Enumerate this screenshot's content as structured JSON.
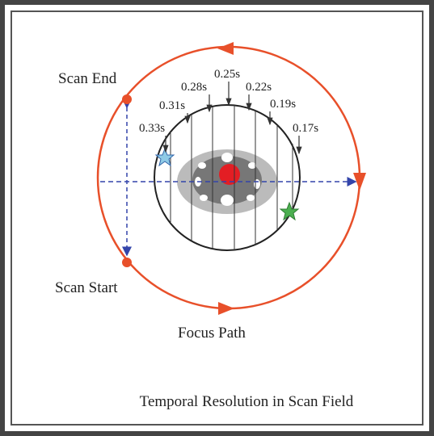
{
  "labels": {
    "scan_end": "Scan End",
    "scan_start": "Scan Start",
    "focus_path": "Focus Path"
  },
  "time_labels": [
    "0.33s",
    "0.31s",
    "0.28s",
    "0.25s",
    "0.22s",
    "0.19s",
    "0.17s"
  ],
  "caption": "Temporal Resolution in Scan Field"
}
